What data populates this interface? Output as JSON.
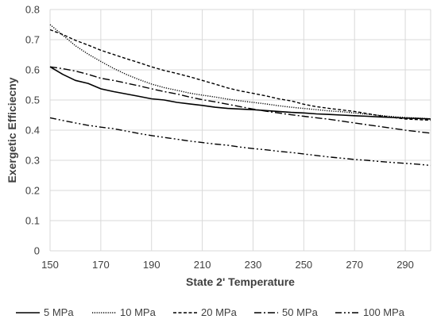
{
  "chart_data": {
    "type": "line",
    "title": "",
    "xlabel": "State 2' Temperature",
    "ylabel": "Exergetic Efficiecny",
    "xlim": [
      150,
      300
    ],
    "ylim": [
      0,
      0.8
    ],
    "xticks": [
      150,
      170,
      190,
      210,
      230,
      250,
      270,
      290
    ],
    "yticks": [
      0,
      0.1,
      0.2,
      0.3,
      0.4,
      0.5,
      0.6,
      0.7,
      0.8
    ],
    "grid": true,
    "legend_position": "bottom",
    "colors": {
      "series": "#000000",
      "grid": "#d9d9d9",
      "text": "#404040"
    },
    "series": [
      {
        "name": "5 MPa",
        "line_style": "solid",
        "x": [
          150,
          155,
          160,
          165,
          170,
          175,
          180,
          185,
          190,
          195,
          200,
          205,
          210,
          215,
          220,
          225,
          230,
          235,
          240,
          245,
          250,
          255,
          260,
          265,
          270,
          275,
          280,
          285,
          290,
          295,
          300
        ],
        "values": [
          0.61,
          0.585,
          0.565,
          0.555,
          0.537,
          0.528,
          0.52,
          0.512,
          0.504,
          0.5,
          0.492,
          0.487,
          0.482,
          0.476,
          0.472,
          0.47,
          0.468,
          0.465,
          0.462,
          0.459,
          0.457,
          0.454,
          0.452,
          0.45,
          0.448,
          0.446,
          0.444,
          0.442,
          0.44,
          0.439,
          0.437
        ]
      },
      {
        "name": "10 MPa",
        "line_style": "dotted",
        "x": [
          150,
          155,
          160,
          165,
          170,
          175,
          180,
          185,
          190,
          195,
          200,
          205,
          210,
          215,
          220,
          225,
          230,
          235,
          240,
          245,
          250,
          255,
          260,
          265,
          270,
          275,
          280,
          285,
          290,
          295,
          300
        ],
        "values": [
          0.75,
          0.715,
          0.68,
          0.652,
          0.628,
          0.605,
          0.585,
          0.568,
          0.553,
          0.541,
          0.532,
          0.523,
          0.516,
          0.51,
          0.503,
          0.497,
          0.492,
          0.487,
          0.481,
          0.476,
          0.472,
          0.468,
          0.464,
          0.461,
          0.457,
          0.453,
          0.449,
          0.445,
          0.442,
          0.44,
          0.438
        ]
      },
      {
        "name": "20 MPa",
        "line_style": "dashed",
        "x": [
          150,
          155,
          160,
          165,
          170,
          175,
          180,
          185,
          190,
          195,
          200,
          205,
          210,
          215,
          220,
          225,
          230,
          235,
          240,
          245,
          250,
          255,
          260,
          265,
          270,
          275,
          280,
          285,
          290,
          295,
          300
        ],
        "values": [
          0.733,
          0.717,
          0.698,
          0.682,
          0.665,
          0.651,
          0.637,
          0.624,
          0.61,
          0.598,
          0.588,
          0.577,
          0.565,
          0.553,
          0.54,
          0.53,
          0.522,
          0.514,
          0.504,
          0.497,
          0.486,
          0.478,
          0.472,
          0.467,
          0.462,
          0.455,
          0.448,
          0.442,
          0.437,
          0.435,
          0.433
        ]
      },
      {
        "name": "50 MPa",
        "line_style": "dash-dot",
        "x": [
          150,
          155,
          160,
          165,
          170,
          175,
          180,
          185,
          190,
          195,
          200,
          205,
          210,
          215,
          220,
          225,
          230,
          235,
          240,
          245,
          250,
          255,
          260,
          265,
          270,
          275,
          280,
          285,
          290,
          295,
          300
        ],
        "values": [
          0.61,
          0.604,
          0.596,
          0.585,
          0.572,
          0.565,
          0.556,
          0.547,
          0.537,
          0.528,
          0.52,
          0.51,
          0.501,
          0.494,
          0.486,
          0.478,
          0.47,
          0.463,
          0.457,
          0.451,
          0.446,
          0.441,
          0.436,
          0.43,
          0.424,
          0.418,
          0.412,
          0.406,
          0.4,
          0.395,
          0.39
        ]
      },
      {
        "name": "100 MPa",
        "line_style": "dash-dot-dot",
        "x": [
          150,
          155,
          160,
          165,
          170,
          175,
          180,
          185,
          190,
          195,
          200,
          205,
          210,
          215,
          220,
          225,
          230,
          235,
          240,
          245,
          250,
          255,
          260,
          265,
          270,
          275,
          280,
          285,
          290,
          295,
          300
        ],
        "values": [
          0.441,
          0.432,
          0.424,
          0.416,
          0.41,
          0.405,
          0.397,
          0.389,
          0.382,
          0.376,
          0.37,
          0.364,
          0.359,
          0.354,
          0.35,
          0.344,
          0.339,
          0.335,
          0.33,
          0.326,
          0.321,
          0.316,
          0.311,
          0.307,
          0.303,
          0.3,
          0.296,
          0.293,
          0.29,
          0.287,
          0.283
        ]
      }
    ]
  }
}
